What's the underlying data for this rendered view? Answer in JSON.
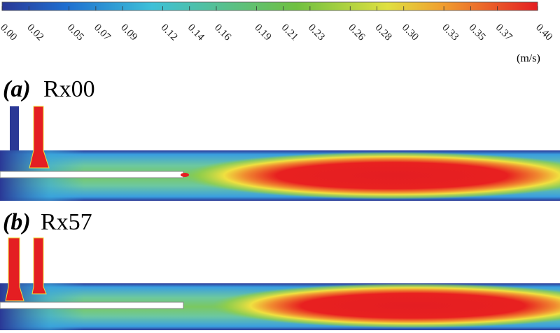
{
  "colorbar": {
    "ticks": [
      {
        "value": 0,
        "label": "0.00"
      },
      {
        "value": 0.02,
        "label": "0.02"
      },
      {
        "value": 0.05,
        "label": "0.05"
      },
      {
        "value": 0.07,
        "label": "0.07"
      },
      {
        "value": 0.09,
        "label": "0.09"
      },
      {
        "value": 0.12,
        "label": "0.12"
      },
      {
        "value": 0.14,
        "label": "0.14"
      },
      {
        "value": 0.16,
        "label": "0.16"
      },
      {
        "value": 0.19,
        "label": "0.19"
      },
      {
        "value": 0.21,
        "label": "0.21"
      },
      {
        "value": 0.23,
        "label": "0.23"
      },
      {
        "value": 0.26,
        "label": "0.26"
      },
      {
        "value": 0.28,
        "label": "0.28"
      },
      {
        "value": 0.3,
        "label": "0.30"
      },
      {
        "value": 0.33,
        "label": "0.33"
      },
      {
        "value": 0.35,
        "label": "0.35"
      },
      {
        "value": 0.37,
        "label": "0.37"
      },
      {
        "value": 0.4,
        "label": "0.40"
      }
    ],
    "unit": "(m/s)"
  },
  "panels": [
    {
      "label": "(a)",
      "name": "Rx00"
    },
    {
      "label": "(b)",
      "name": "Rx57"
    }
  ]
}
